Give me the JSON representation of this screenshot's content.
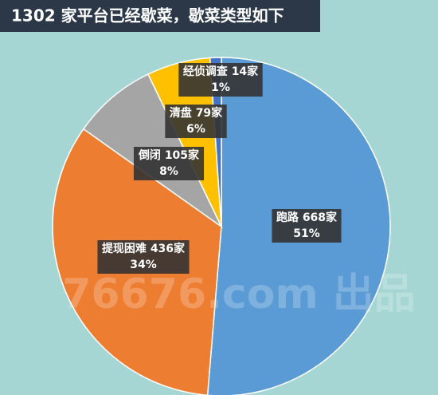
{
  "chart_data": {
    "type": "pie",
    "title": "1302 家平台已经歇菜，歇菜类型如下",
    "categories": [
      "跑路",
      "提现困难",
      "倒闭",
      "清盘",
      "经侦调查"
    ],
    "values": [
      668,
      436,
      105,
      79,
      14
    ],
    "value_labels": [
      "668家",
      "436家",
      "105家",
      "79家",
      "14家"
    ],
    "percent_labels": [
      "51%",
      "34%",
      "8%",
      "6%",
      "1%"
    ],
    "colors": [
      "#5b9bd5",
      "#ed7d31",
      "#a5a5a5",
      "#ffc000",
      "#4472c4"
    ],
    "watermark": "76676.com 出品"
  }
}
